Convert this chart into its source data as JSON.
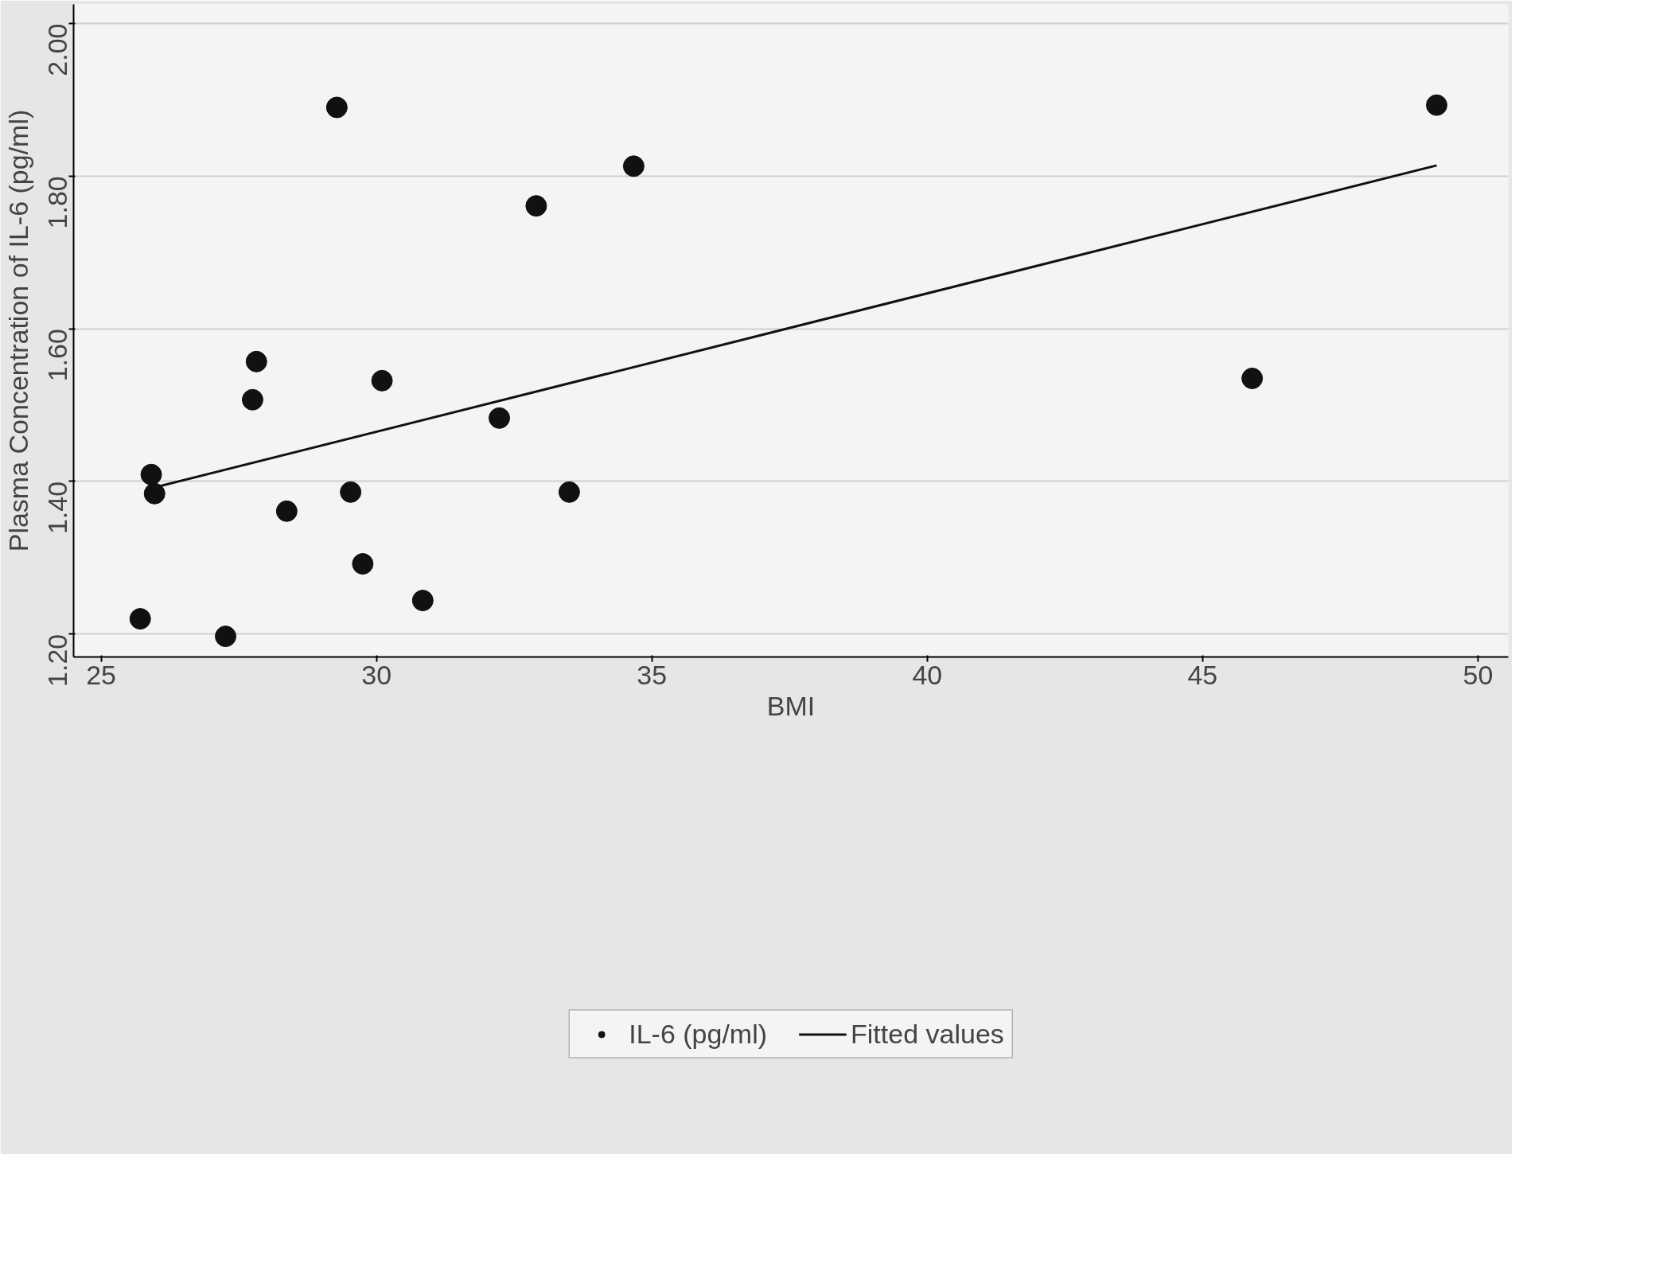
{
  "chart_data": {
    "type": "scatter",
    "xlabel": "BMI",
    "ylabel": "Plasma Concentration of IL-6 (pg/ml)",
    "xlim": [
      24.5,
      50.55
    ],
    "ylim": [
      1.17,
      2.025
    ],
    "xticks": [
      25,
      30,
      35,
      40,
      45,
      50
    ],
    "yticks": [
      {
        "value": 1.2,
        "label": "1.20"
      },
      {
        "value": 1.4,
        "label": "1.40"
      },
      {
        "value": 1.6,
        "label": "1.60"
      },
      {
        "value": 1.8,
        "label": "1.80"
      },
      {
        "value": 2.0,
        "label": "2.00"
      }
    ],
    "grid": "y",
    "legend": "bottom",
    "marker": "circle",
    "series": [
      {
        "name": "IL-6 (pg/ml)",
        "color": "#111111",
        "x": [
          25.71,
          27.26,
          25.91,
          25.97,
          27.82,
          27.75,
          28.37,
          29.28,
          29.53,
          29.75,
          30.1,
          30.84,
          32.23,
          32.9,
          33.5,
          34.67,
          45.9,
          49.25
        ],
        "values": [
          1.22,
          1.197,
          1.409,
          1.384,
          1.557,
          1.507,
          1.361,
          1.89,
          1.386,
          1.292,
          1.532,
          1.244,
          1.483,
          1.761,
          1.386,
          1.813,
          1.535,
          1.893
        ]
      },
      {
        "name": "Fitted values",
        "color": "#111111",
        "type": "line",
        "marker": "none",
        "x": [
          25.91,
          49.25
        ],
        "values": [
          1.391,
          1.814
        ]
      }
    ]
  }
}
